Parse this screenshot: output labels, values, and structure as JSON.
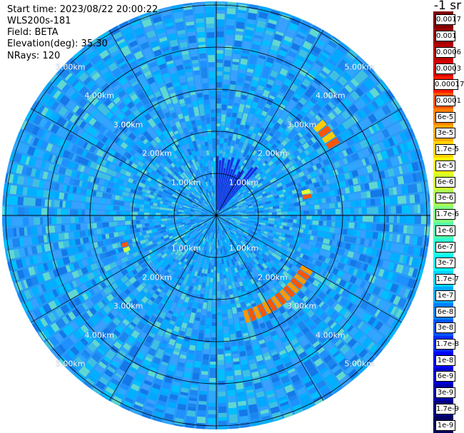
{
  "info": {
    "start_time": "Start time: 2023/08/22 20:00:22",
    "instrument": "WLS200s-181",
    "field": "Field: BETA",
    "elevation": "Elevation(deg): 35.30",
    "nrays": "NRays: 120"
  },
  "range_labels": [
    "1.00km",
    "2.00km",
    "3.00km",
    "4.00km",
    "5.00km"
  ],
  "colorbar": {
    "unit_title": "-1 sr",
    "levels": [
      "0.0017",
      "0.001",
      "0.0006",
      "0.0003",
      "0.00017",
      "0.0001",
      "6e-5",
      "3e-5",
      "1.7e-5",
      "1e-5",
      "6e-6",
      "3e-6",
      "1.7e-6",
      "1e-6",
      "6e-7",
      "3e-7",
      "1.7e-7",
      "1e-7",
      "6e-8",
      "3e-8",
      "1.7e-8",
      "1e-8",
      "6e-9",
      "3e-9",
      "1.7e-9",
      "1e-9"
    ],
    "colors": [
      "#800000",
      "#9a0000",
      "#b80000",
      "#d40000",
      "#ff1a00",
      "#ff5500",
      "#ff8000",
      "#ffaa00",
      "#ffd500",
      "#ffff00",
      "#d4ff2b",
      "#aaff55",
      "#80ff80",
      "#55ffaa",
      "#2bffd4",
      "#00ffff",
      "#00d4ff",
      "#00aaff",
      "#0080ff",
      "#0055ff",
      "#002bff",
      "#0000ff",
      "#0000d4",
      "#0000aa",
      "#000080",
      "#000060"
    ]
  },
  "scan": {
    "nrays": 120,
    "max_range_km": 5.5,
    "colors": [
      "#1e90ff",
      "#00bfff",
      "#1c86ee",
      "#00a8ff",
      "#40c0e0",
      "#2ea8ff",
      "#1478e8",
      "#60d8d0",
      "#00b0ff",
      "#3aa0ff"
    ]
  },
  "hotspots": [
    {
      "az": 143,
      "r0": 2.35,
      "r1": 2.65,
      "a0": 120,
      "a1": 165,
      "color": "#ff9900"
    },
    {
      "az": 56,
      "r0": 3.1,
      "r1": 3.4,
      "a0": 48,
      "a1": 60,
      "color": "#ffcc00"
    },
    {
      "az": 78,
      "r0": 2.1,
      "r1": 2.3,
      "a0": 74,
      "a1": 80,
      "color": "#e8ff30"
    },
    {
      "az": 252,
      "r0": 2.2,
      "r1": 2.35,
      "a0": 248,
      "a1": 254,
      "color": "#d0ff40"
    }
  ]
}
